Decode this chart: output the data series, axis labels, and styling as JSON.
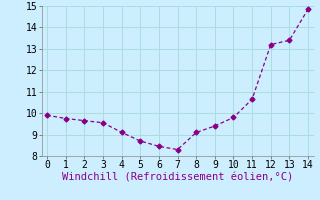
{
  "x": [
    0,
    1,
    2,
    3,
    4,
    5,
    6,
    7,
    8,
    9,
    10,
    11,
    12,
    13,
    14
  ],
  "y": [
    9.9,
    9.75,
    9.65,
    9.55,
    9.1,
    8.7,
    8.45,
    8.3,
    9.1,
    9.4,
    9.8,
    10.65,
    13.2,
    13.4,
    14.85
  ],
  "xlabel": "Windchill (Refroidissement éolien,°C)",
  "ylim": [
    8,
    15
  ],
  "xlim": [
    -0.3,
    14.3
  ],
  "yticks": [
    8,
    9,
    10,
    11,
    12,
    13,
    14,
    15
  ],
  "xticks": [
    0,
    1,
    2,
    3,
    4,
    5,
    6,
    7,
    8,
    9,
    10,
    11,
    12,
    13,
    14
  ],
  "line_color": "#880088",
  "bg_color": "#cceeff",
  "grid_color": "#aadddd",
  "tick_fontsize": 7,
  "xlabel_fontsize": 7.5
}
